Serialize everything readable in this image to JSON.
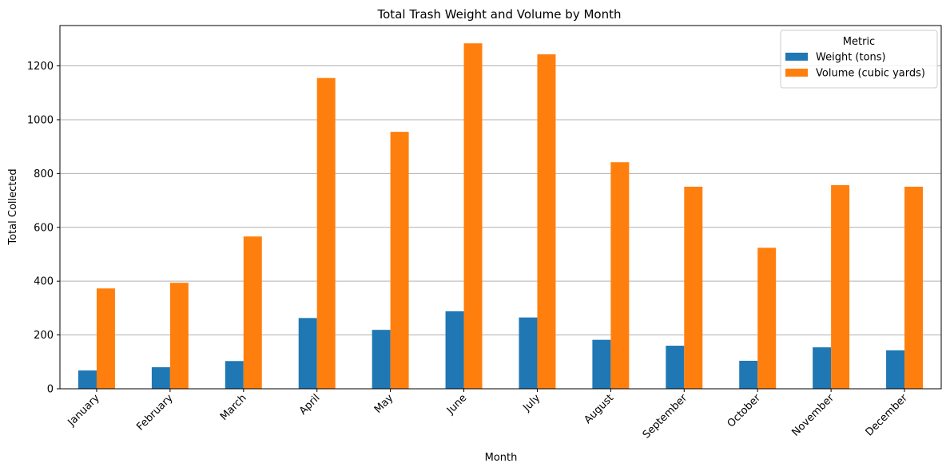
{
  "chart_data": {
    "type": "bar",
    "title": "Total Trash Weight and Volume by Month",
    "xlabel": "Month",
    "ylabel": "Total Collected",
    "categories": [
      "January",
      "February",
      "March",
      "April",
      "May",
      "June",
      "July",
      "August",
      "September",
      "October",
      "November",
      "December"
    ],
    "series": [
      {
        "name": "Weight (tons)",
        "color": "#1f77b4",
        "values": [
          68,
          80,
          103,
          263,
          219,
          288,
          265,
          182,
          160,
          104,
          154,
          143
        ]
      },
      {
        "name": "Volume (cubic yards)",
        "color": "#ff7f0e",
        "values": [
          373,
          394,
          566,
          1155,
          955,
          1284,
          1243,
          842,
          751,
          524,
          757,
          751
        ]
      }
    ],
    "ylim": [
      0,
      1350
    ],
    "yticks": [
      0,
      200,
      400,
      600,
      800,
      1000,
      1200
    ],
    "grid": "y",
    "legend": {
      "title": "Metric",
      "position": "top-right"
    }
  }
}
